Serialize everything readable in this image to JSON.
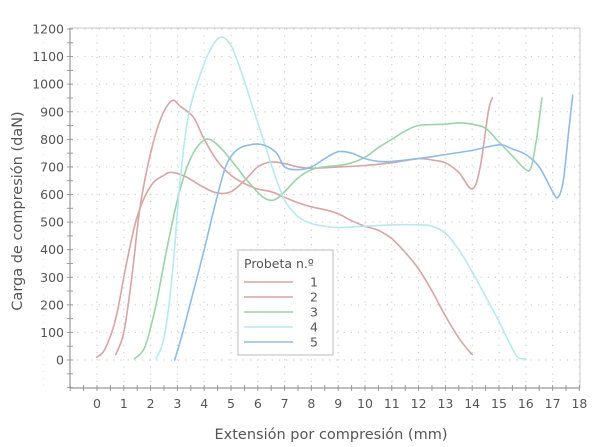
{
  "chart_data": {
    "type": "line",
    "title": "",
    "xlabel": "Extensión por compresión (mm)",
    "ylabel": "Carga de compresión (daN)",
    "xlim": [
      -2,
      18
    ],
    "ylim": [
      -200,
      1200
    ],
    "x_ticks": [
      "0",
      "1",
      "2",
      "3",
      "4",
      "5",
      "6",
      "7",
      "8",
      "9",
      "10",
      "11",
      "12",
      "13",
      "14",
      "15",
      "16",
      "17",
      "18"
    ],
    "y_ticks": [
      "0",
      "100",
      "200",
      "300",
      "400",
      "500",
      "600",
      "700",
      "800",
      "900",
      "1000",
      "1100",
      "1200"
    ],
    "grid": true,
    "legend": {
      "title": "Probeta n.º",
      "position": "inside-center-bottom",
      "entries": [
        "1",
        "2",
        "3",
        "4",
        "5"
      ]
    },
    "series": [
      {
        "name": "1",
        "color": "#d8a4a4",
        "points": [
          [
            0,
            10
          ],
          [
            0.3,
            40
          ],
          [
            0.7,
            150
          ],
          [
            1.1,
            350
          ],
          [
            1.5,
            520
          ],
          [
            2,
            630
          ],
          [
            2.5,
            670
          ],
          [
            2.8,
            680
          ],
          [
            3.3,
            665
          ],
          [
            4,
            625
          ],
          [
            4.5,
            605
          ],
          [
            5,
            610
          ],
          [
            5.5,
            650
          ],
          [
            6,
            700
          ],
          [
            6.5,
            718
          ],
          [
            7,
            712
          ],
          [
            7.5,
            700
          ],
          [
            8,
            695
          ],
          [
            9,
            700
          ],
          [
            10,
            705
          ],
          [
            11,
            715
          ],
          [
            12,
            730
          ],
          [
            12.5,
            725
          ],
          [
            13,
            715
          ],
          [
            13.5,
            680
          ],
          [
            14,
            620
          ],
          [
            14.3,
            700
          ],
          [
            14.6,
            900
          ],
          [
            14.75,
            950
          ]
        ]
      },
      {
        "name": "2",
        "color": "#d8a4a4",
        "points": [
          [
            0.7,
            20
          ],
          [
            1,
            100
          ],
          [
            1.3,
            300
          ],
          [
            1.6,
            550
          ],
          [
            2,
            750
          ],
          [
            2.4,
            880
          ],
          [
            2.8,
            940
          ],
          [
            3.1,
            920
          ],
          [
            3.6,
            880
          ],
          [
            4,
            800
          ],
          [
            4.5,
            720
          ],
          [
            5,
            670
          ],
          [
            5.5,
            640
          ],
          [
            6,
            620
          ],
          [
            6.5,
            610
          ],
          [
            7,
            590
          ],
          [
            7.5,
            570
          ],
          [
            8,
            555
          ],
          [
            8.5,
            545
          ],
          [
            9,
            530
          ],
          [
            9.5,
            505
          ],
          [
            10,
            485
          ],
          [
            10.5,
            470
          ],
          [
            11,
            440
          ],
          [
            11.5,
            390
          ],
          [
            12,
            330
          ],
          [
            12.5,
            250
          ],
          [
            13,
            160
          ],
          [
            13.5,
            80
          ],
          [
            13.9,
            30
          ],
          [
            14,
            20
          ]
        ]
      },
      {
        "name": "3",
        "color": "#9cd3a9",
        "points": [
          [
            1.4,
            5
          ],
          [
            1.8,
            50
          ],
          [
            2.2,
            200
          ],
          [
            2.6,
            400
          ],
          [
            3,
            580
          ],
          [
            3.4,
            710
          ],
          [
            3.8,
            780
          ],
          [
            4.2,
            800
          ],
          [
            4.7,
            760
          ],
          [
            5.2,
            700
          ],
          [
            5.7,
            640
          ],
          [
            6.2,
            590
          ],
          [
            6.6,
            580
          ],
          [
            7,
            610
          ],
          [
            7.5,
            660
          ],
          [
            8,
            690
          ],
          [
            8.5,
            700
          ],
          [
            9,
            705
          ],
          [
            9.5,
            715
          ],
          [
            10,
            735
          ],
          [
            10.5,
            770
          ],
          [
            11,
            800
          ],
          [
            11.5,
            830
          ],
          [
            12,
            850
          ],
          [
            13,
            855
          ],
          [
            13.5,
            860
          ],
          [
            14,
            855
          ],
          [
            14.5,
            840
          ],
          [
            15,
            790
          ],
          [
            15.5,
            740
          ],
          [
            16,
            690
          ],
          [
            16.2,
            700
          ],
          [
            16.4,
            800
          ],
          [
            16.6,
            950
          ]
        ]
      },
      {
        "name": "4",
        "color": "#b8e8f0",
        "points": [
          [
            2.2,
            5
          ],
          [
            2.5,
            80
          ],
          [
            2.8,
            300
          ],
          [
            3.1,
            650
          ],
          [
            3.4,
            880
          ],
          [
            3.8,
            1020
          ],
          [
            4.2,
            1120
          ],
          [
            4.6,
            1170
          ],
          [
            5,
            1140
          ],
          [
            5.4,
            1040
          ],
          [
            5.8,
            920
          ],
          [
            6.2,
            800
          ],
          [
            6.6,
            680
          ],
          [
            7,
            580
          ],
          [
            7.5,
            520
          ],
          [
            8,
            495
          ],
          [
            8.5,
            485
          ],
          [
            9,
            480
          ],
          [
            10,
            485
          ],
          [
            11,
            490
          ],
          [
            12,
            490
          ],
          [
            12.5,
            485
          ],
          [
            13,
            460
          ],
          [
            13.5,
            400
          ],
          [
            14,
            320
          ],
          [
            14.5,
            230
          ],
          [
            15,
            140
          ],
          [
            15.4,
            60
          ],
          [
            15.7,
            10
          ],
          [
            16,
            5
          ]
        ]
      },
      {
        "name": "5",
        "color": "#8fbbe8",
        "points": [
          [
            2.9,
            0
          ],
          [
            3.2,
            100
          ],
          [
            3.6,
            250
          ],
          [
            4,
            400
          ],
          [
            4.4,
            560
          ],
          [
            4.8,
            700
          ],
          [
            5.2,
            760
          ],
          [
            5.7,
            780
          ],
          [
            6.2,
            780
          ],
          [
            6.7,
            750
          ],
          [
            7,
            700
          ],
          [
            7.5,
            690
          ],
          [
            8,
            700
          ],
          [
            8.5,
            730
          ],
          [
            9,
            755
          ],
          [
            9.5,
            750
          ],
          [
            10,
            730
          ],
          [
            10.5,
            720
          ],
          [
            11,
            720
          ],
          [
            12,
            730
          ],
          [
            13,
            745
          ],
          [
            14,
            760
          ],
          [
            15,
            780
          ],
          [
            15.5,
            765
          ],
          [
            16,
            745
          ],
          [
            16.5,
            700
          ],
          [
            17,
            610
          ],
          [
            17.2,
            590
          ],
          [
            17.4,
            650
          ],
          [
            17.6,
            830
          ],
          [
            17.75,
            960
          ]
        ]
      }
    ]
  }
}
